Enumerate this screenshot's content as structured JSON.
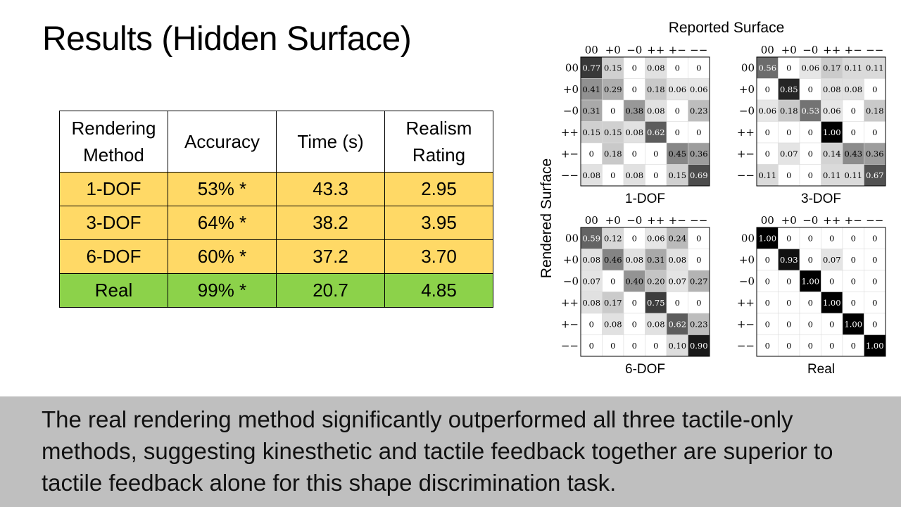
{
  "slide": {
    "title": "Results (Hidden Surface)",
    "footer_text": "The real rendering method significantly outperformed all three tactile-only methods, suggesting kinesthetic and tactile feedback together are superior to tactile feedback alone for this shape discrimination task."
  },
  "table": {
    "headers": [
      "Rendering\nMethod",
      "Accuracy",
      "Time (s)",
      "Realism\nRating"
    ],
    "rows": [
      [
        "1-DOF",
        "53% *",
        "43.3",
        "2.95"
      ],
      [
        "3-DOF",
        "64% *",
        "38.2",
        "3.95"
      ],
      [
        "6-DOF",
        "60% *",
        "37.2",
        "3.70"
      ],
      [
        "Real",
        "99% *",
        "20.7",
        "4.85"
      ]
    ],
    "colors": {
      "simulated": "#ffd966",
      "real": "#8cd24a"
    }
  },
  "chart_data": {
    "type": "heatmap",
    "xlabel": "Reported Surface",
    "ylabel": "Rendered Surface",
    "row_labels": [
      "00",
      "+0",
      "−0",
      "++",
      "+−",
      "−−"
    ],
    "col_labels": [
      "00",
      "+0",
      "−0",
      "++",
      "+−",
      "−−"
    ],
    "matrices": [
      {
        "name": "1-DOF",
        "values": [
          [
            "0.77",
            "0.15",
            "0",
            "0.08",
            "0",
            "0"
          ],
          [
            "0.41",
            "0.29",
            "0",
            "0.18",
            "0.06",
            "0.06"
          ],
          [
            "0.31",
            "0",
            "0.38",
            "0.08",
            "0",
            "0.23"
          ],
          [
            "0.15",
            "0.15",
            "0.08",
            "0.62",
            "0",
            "0"
          ],
          [
            "0",
            "0.18",
            "0",
            "0",
            "0.45",
            "0.36"
          ],
          [
            "0.08",
            "0",
            "0.08",
            "0",
            "0.15",
            "0.69"
          ]
        ]
      },
      {
        "name": "3-DOF",
        "values": [
          [
            "0.56",
            "0",
            "0.06",
            "0.17",
            "0.11",
            "0.11"
          ],
          [
            "0",
            "0.85",
            "0",
            "0.08",
            "0.08",
            "0"
          ],
          [
            "0.06",
            "0.18",
            "0.53",
            "0.06",
            "0",
            "0.18"
          ],
          [
            "0",
            "0",
            "0",
            "1.00",
            "0",
            "0"
          ],
          [
            "0",
            "0.07",
            "0",
            "0.14",
            "0.43",
            "0.36"
          ],
          [
            "0.11",
            "0",
            "0",
            "0.11",
            "0.11",
            "0.67"
          ]
        ]
      },
      {
        "name": "6-DOF",
        "values": [
          [
            "0.59",
            "0.12",
            "0",
            "0.06",
            "0.24",
            "0"
          ],
          [
            "0.08",
            "0.46",
            "0.08",
            "0.31",
            "0.08",
            "0"
          ],
          [
            "0.07",
            "0",
            "0.40",
            "0.20",
            "0.07",
            "0.27"
          ],
          [
            "0.08",
            "0.17",
            "0",
            "0.75",
            "0",
            "0"
          ],
          [
            "0",
            "0.08",
            "0",
            "0.08",
            "0.62",
            "0.23"
          ],
          [
            "0",
            "0",
            "0",
            "0",
            "0.10",
            "0.90"
          ]
        ]
      },
      {
        "name": "Real",
        "values": [
          [
            "1.00",
            "0",
            "0",
            "0",
            "0",
            "0"
          ],
          [
            "0",
            "0.93",
            "0",
            "0.07",
            "0",
            "0"
          ],
          [
            "0",
            "0",
            "1.00",
            "0",
            "0",
            "0"
          ],
          [
            "0",
            "0",
            "0",
            "1.00",
            "0",
            "0"
          ],
          [
            "0",
            "0",
            "0",
            "0",
            "1.00",
            "0"
          ],
          [
            "0",
            "0",
            "0",
            "0",
            "0",
            "1.00"
          ]
        ]
      }
    ]
  }
}
